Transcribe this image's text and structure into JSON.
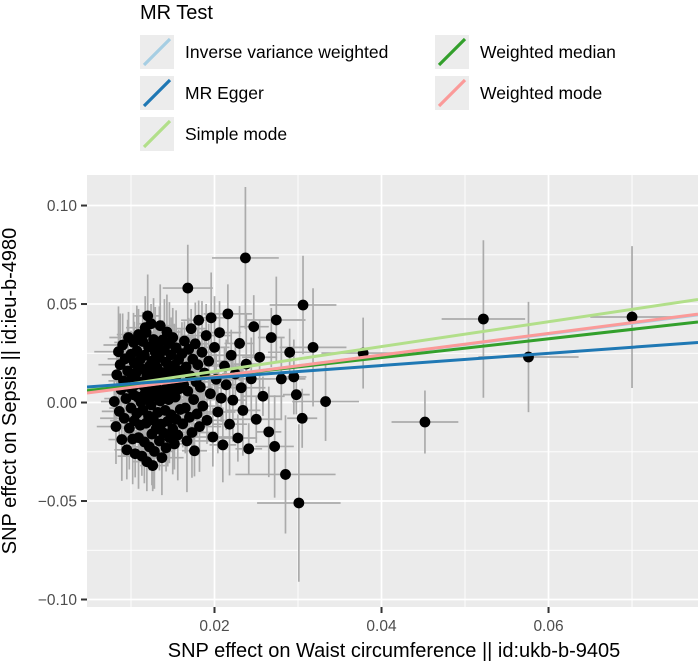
{
  "legend": {
    "title": "MR Test",
    "columns": [
      [
        {
          "label": "Inverse variance weighted",
          "color": "#A6CEE3"
        },
        {
          "label": "MR Egger",
          "color": "#1F78B4"
        },
        {
          "label": "Simple mode",
          "color": "#B2DF8A"
        }
      ],
      [
        {
          "label": "Weighted median",
          "color": "#33A02C"
        },
        {
          "label": "Weighted mode",
          "color": "#FB9A99"
        }
      ]
    ],
    "key_background": "#ECECEC"
  },
  "chart_data": {
    "type": "scatter",
    "title": "",
    "xlabel": "SNP effect on Waist circumference || id:ukb-b-9405",
    "ylabel": "SNP effect on Sepsis || id:ieu-b-4980",
    "xlim": [
      0.00473,
      0.0779
    ],
    "ylim": [
      -0.1038,
      0.1155
    ],
    "grid": "on",
    "legend_position": "top",
    "panel_bg": "#EBEBEB",
    "grid_color": "#FFFFFF",
    "tick_color": "#333333",
    "errorbar_color": "#ABABAB",
    "point_color": "#000000",
    "point_radius": 5.4,
    "x_major_ticks": [
      {
        "v": 0.02,
        "label": "0.02"
      },
      {
        "v": 0.04,
        "label": "0.04"
      },
      {
        "v": 0.06,
        "label": "0.06"
      }
    ],
    "x_minor_ticks": [
      0.01,
      0.03,
      0.05,
      0.07
    ],
    "y_major_ticks": [
      {
        "v": 0.1,
        "label": "0.10"
      },
      {
        "v": 0.05,
        "label": "0.05"
      },
      {
        "v": 0.0,
        "label": "0.00"
      },
      {
        "v": -0.05,
        "label": "−0.05"
      },
      {
        "v": -0.1,
        "label": "−0.10"
      }
    ],
    "y_minor_ticks": [
      0.075,
      0.025,
      -0.025,
      -0.075
    ],
    "regression_lines": [
      {
        "name": "Inverse variance weighted",
        "color": "#A6CEE3",
        "x": [
          0.00473,
          0.0779
        ],
        "y": [
          0.005,
          0.0445
        ]
      },
      {
        "name": "Simple mode",
        "color": "#B2DF8A",
        "x": [
          0.00473,
          0.0779
        ],
        "y": [
          0.0062,
          0.0523
        ]
      },
      {
        "name": "Weighted median",
        "color": "#33A02C",
        "x": [
          0.00473,
          0.0779
        ],
        "y": [
          0.006,
          0.0409
        ]
      },
      {
        "name": "Weighted mode",
        "color": "#FB9A99",
        "x": [
          0.00473,
          0.0779
        ],
        "y": [
          0.0048,
          0.0449
        ]
      },
      {
        "name": "MR Egger",
        "color": "#1F78B4",
        "x": [
          0.00473,
          0.0779
        ],
        "y": [
          0.0079,
          0.0305
        ]
      }
    ],
    "error_xe_cycle": [
      0.0016,
      0.0023,
      0.0018,
      0.0029,
      0.0021,
      0.0026,
      0.0015
    ],
    "error_ye_cycle": [
      0.012,
      0.019,
      0.01,
      0.023,
      0.015,
      0.026,
      0.013,
      0.021,
      0.016
    ],
    "points": [
      [
        0.008,
        0.0005
      ],
      [
        0.0082,
        -0.0122
      ],
      [
        0.0083,
        0.0141
      ],
      [
        0.0085,
        0.0258
      ],
      [
        0.0086,
        -0.0045
      ],
      [
        0.0087,
        0.0192
      ],
      [
        0.0088,
        0.0066
      ],
      [
        0.0089,
        -0.0188
      ],
      [
        0.009,
        0.0292
      ],
      [
        0.0091,
        0.011
      ],
      [
        0.0092,
        -0.008
      ],
      [
        0.0093,
        0.0222
      ],
      [
        0.0094,
        0.002
      ],
      [
        0.0095,
        -0.024
      ],
      [
        0.0096,
        0.016
      ],
      [
        0.0097,
        0.033
      ],
      [
        0.0098,
        -0.013
      ],
      [
        0.0099,
        0.0075
      ],
      [
        0.01,
        0.0245
      ],
      [
        0.01,
        -0.0028
      ],
      [
        0.0101,
        0.0125
      ],
      [
        0.0102,
        -0.0185
      ],
      [
        0.0103,
        0.0305
      ],
      [
        0.0103,
        0.004
      ],
      [
        0.0104,
        -0.0092
      ],
      [
        0.0104,
        0.02
      ],
      [
        0.0105,
        0.009
      ],
      [
        0.0105,
        -0.026
      ],
      [
        0.0106,
        0.015
      ],
      [
        0.0107,
        -0.0055
      ],
      [
        0.0107,
        0.0262
      ],
      [
        0.0108,
        0.0028
      ],
      [
        0.0109,
        -0.0178
      ],
      [
        0.0109,
        0.0345
      ],
      [
        0.011,
        0.0105
      ],
      [
        0.0111,
        -0.0115
      ],
      [
        0.0111,
        0.0218
      ],
      [
        0.0112,
        0.0002
      ],
      [
        0.0113,
        -0.0272
      ],
      [
        0.0113,
        0.017
      ],
      [
        0.0114,
        0.031
      ],
      [
        0.0114,
        -0.0038
      ],
      [
        0.0115,
        0.0085
      ],
      [
        0.0116,
        -0.02
      ],
      [
        0.0116,
        0.024
      ],
      [
        0.0117,
        0.0048
      ],
      [
        0.0118,
        -0.0105
      ],
      [
        0.0118,
        0.0355
      ],
      [
        0.0119,
        0.0135
      ],
      [
        0.0119,
        -0.03
      ],
      [
        0.012,
        0.0022
      ],
      [
        0.0121,
        0.0282
      ],
      [
        0.0121,
        -0.0068
      ],
      [
        0.0122,
        0.0185
      ],
      [
        0.0122,
        -0.0225
      ],
      [
        0.0123,
        0.0098
      ],
      [
        0.0124,
        0.04
      ],
      [
        0.0124,
        -0.0012
      ],
      [
        0.0125,
        0.021
      ],
      [
        0.0125,
        -0.016
      ],
      [
        0.0126,
        0.006
      ],
      [
        0.0127,
        0.032
      ],
      [
        0.0127,
        -0.009
      ],
      [
        0.0128,
        0.0148
      ],
      [
        0.0128,
        -0.0248
      ],
      [
        0.0129,
        0.0035
      ],
      [
        0.0129,
        0.0255
      ],
      [
        0.013,
        -0.0135
      ],
      [
        0.013,
        0.0115
      ],
      [
        0.0126,
        -0.032
      ],
      [
        0.012,
        0.044
      ],
      [
        0.0117,
        0.038
      ],
      [
        0.0131,
        0.0178
      ],
      [
        0.0132,
        -0.005
      ],
      [
        0.0132,
        0.0292
      ],
      [
        0.0133,
        0.0065
      ],
      [
        0.0134,
        -0.0195
      ],
      [
        0.0134,
        0.0228
      ],
      [
        0.0135,
        0.0008
      ],
      [
        0.0135,
        0.039
      ],
      [
        0.0136,
        -0.011
      ],
      [
        0.0137,
        0.0152
      ],
      [
        0.0137,
        -0.028
      ],
      [
        0.0138,
        0.0318
      ],
      [
        0.0138,
        0.0042
      ],
      [
        0.0139,
        -0.0155
      ],
      [
        0.014,
        0.0265
      ],
      [
        0.014,
        0.0118
      ],
      [
        0.0141,
        -0.004
      ],
      [
        0.0142,
        0.0205
      ],
      [
        0.0142,
        -0.023
      ],
      [
        0.0143,
        0.0358
      ],
      [
        0.0143,
        0.0078
      ],
      [
        0.0144,
        -0.0095
      ],
      [
        0.0145,
        0.017
      ],
      [
        0.0145,
        0.0015
      ],
      [
        0.0146,
        -0.0178
      ],
      [
        0.0146,
        0.03
      ],
      [
        0.0147,
        0.0132
      ],
      [
        0.0148,
        -0.0062
      ],
      [
        0.0148,
        0.0242
      ],
      [
        0.0149,
        0.0052
      ],
      [
        0.015,
        -0.0135
      ],
      [
        0.015,
        0.033
      ],
      [
        0.0151,
        0.0098
      ],
      [
        0.0152,
        -0.021
      ],
      [
        0.0152,
        0.019
      ],
      [
        0.0153,
        0.0028
      ],
      [
        0.0154,
        -0.0085
      ],
      [
        0.0154,
        0.0278
      ],
      [
        0.0155,
        0.0142
      ],
      [
        0.0156,
        -0.0165
      ],
      [
        0.0157,
        0.0218
      ],
      [
        0.0158,
        0.007
      ],
      [
        0.0159,
        -0.0035
      ],
      [
        0.016,
        0.016
      ],
      [
        0.0161,
        0.0248
      ],
      [
        0.0162,
        -0.0108
      ],
      [
        0.0163,
        0.009
      ],
      [
        0.0164,
        0.0312
      ],
      [
        0.0165,
        -0.0028
      ],
      [
        0.0166,
        0.018
      ],
      [
        0.0167,
        -0.0195
      ],
      [
        0.0168,
        0.0581,
        0.003,
        0.022
      ],
      [
        0.0168,
        0.0058
      ],
      [
        0.0169,
        0.027
      ],
      [
        0.017,
        -0.0075
      ],
      [
        0.0171,
        0.0135
      ],
      [
        0.0172,
        0.0375
      ],
      [
        0.0173,
        -0.0152
      ],
      [
        0.0174,
        0.022
      ],
      [
        0.0175,
        0.0015
      ],
      [
        0.0176,
        -0.0245
      ],
      [
        0.0177,
        0.0298
      ],
      [
        0.0178,
        0.0105
      ],
      [
        0.0179,
        -0.0058
      ],
      [
        0.018,
        0.0192
      ],
      [
        0.0181,
        0.0418
      ],
      [
        0.0182,
        -0.0122
      ],
      [
        0.0183,
        0.0078
      ],
      [
        0.0185,
        0.0255
      ],
      [
        0.0186,
        -0.0018
      ],
      [
        0.0188,
        0.015
      ],
      [
        0.019,
        0.034
      ],
      [
        0.0191,
        -0.009
      ],
      [
        0.0193,
        0.021
      ],
      [
        0.0195,
        0.0045
      ],
      [
        0.0196,
        0.043
      ],
      [
        0.0198,
        -0.0175
      ],
      [
        0.02,
        0.028
      ],
      [
        0.0202,
        0.0118
      ],
      [
        0.0204,
        -0.0048
      ],
      [
        0.0206,
        0.0355
      ],
      [
        0.0208,
        0.0022
      ],
      [
        0.021,
        -0.0215
      ],
      [
        0.0212,
        0.0185
      ],
      [
        0.0214,
        0.009
      ],
      [
        0.0216,
        0.045
      ],
      [
        0.0218,
        -0.011
      ],
      [
        0.022,
        0.024
      ],
      [
        0.0222,
        0.0012
      ],
      [
        0.0225,
        0.0145
      ],
      [
        0.0228,
        -0.018
      ],
      [
        0.023,
        0.03
      ],
      [
        0.0232,
        0.0075
      ],
      [
        0.0234,
        -0.004
      ],
      [
        0.0237,
        0.0734,
        0.004,
        0.036
      ],
      [
        0.0238,
        0.0195
      ],
      [
        0.0241,
        -0.0235
      ],
      [
        0.0244,
        0.012
      ],
      [
        0.0247,
        0.0385
      ],
      [
        0.025,
        -0.0085
      ],
      [
        0.0254,
        0.023
      ],
      [
        0.0258,
        0.0032
      ],
      [
        0.0265,
        -0.0149
      ],
      [
        0.0268,
        0.033
      ],
      [
        0.0272,
        -0.0223
      ],
      [
        0.0274,
        0.0419,
        0.0035,
        0.022
      ],
      [
        0.028,
        0.012
      ],
      [
        0.0285,
        -0.0365,
        0.006,
        0.03
      ],
      [
        0.029,
        0.0255
      ],
      [
        0.0295,
        0.013
      ],
      [
        0.0298,
        0.004
      ],
      [
        0.0301,
        -0.051,
        0.005,
        0.04
      ],
      [
        0.0305,
        -0.008
      ],
      [
        0.0306,
        0.0495,
        0.004,
        0.025
      ],
      [
        0.0318,
        0.028,
        0.004,
        0.03
      ],
      [
        0.0333,
        0.0005,
        0.004,
        0.02
      ],
      [
        0.0378,
        0.0251,
        0.005,
        0.018
      ],
      [
        0.0452,
        -0.0099,
        0.004,
        0.016
      ],
      [
        0.0522,
        0.0424,
        0.005,
        0.04
      ],
      [
        0.0576,
        0.0231,
        0.006,
        0.028
      ],
      [
        0.07,
        0.0434,
        0.005,
        0.036
      ]
    ]
  }
}
